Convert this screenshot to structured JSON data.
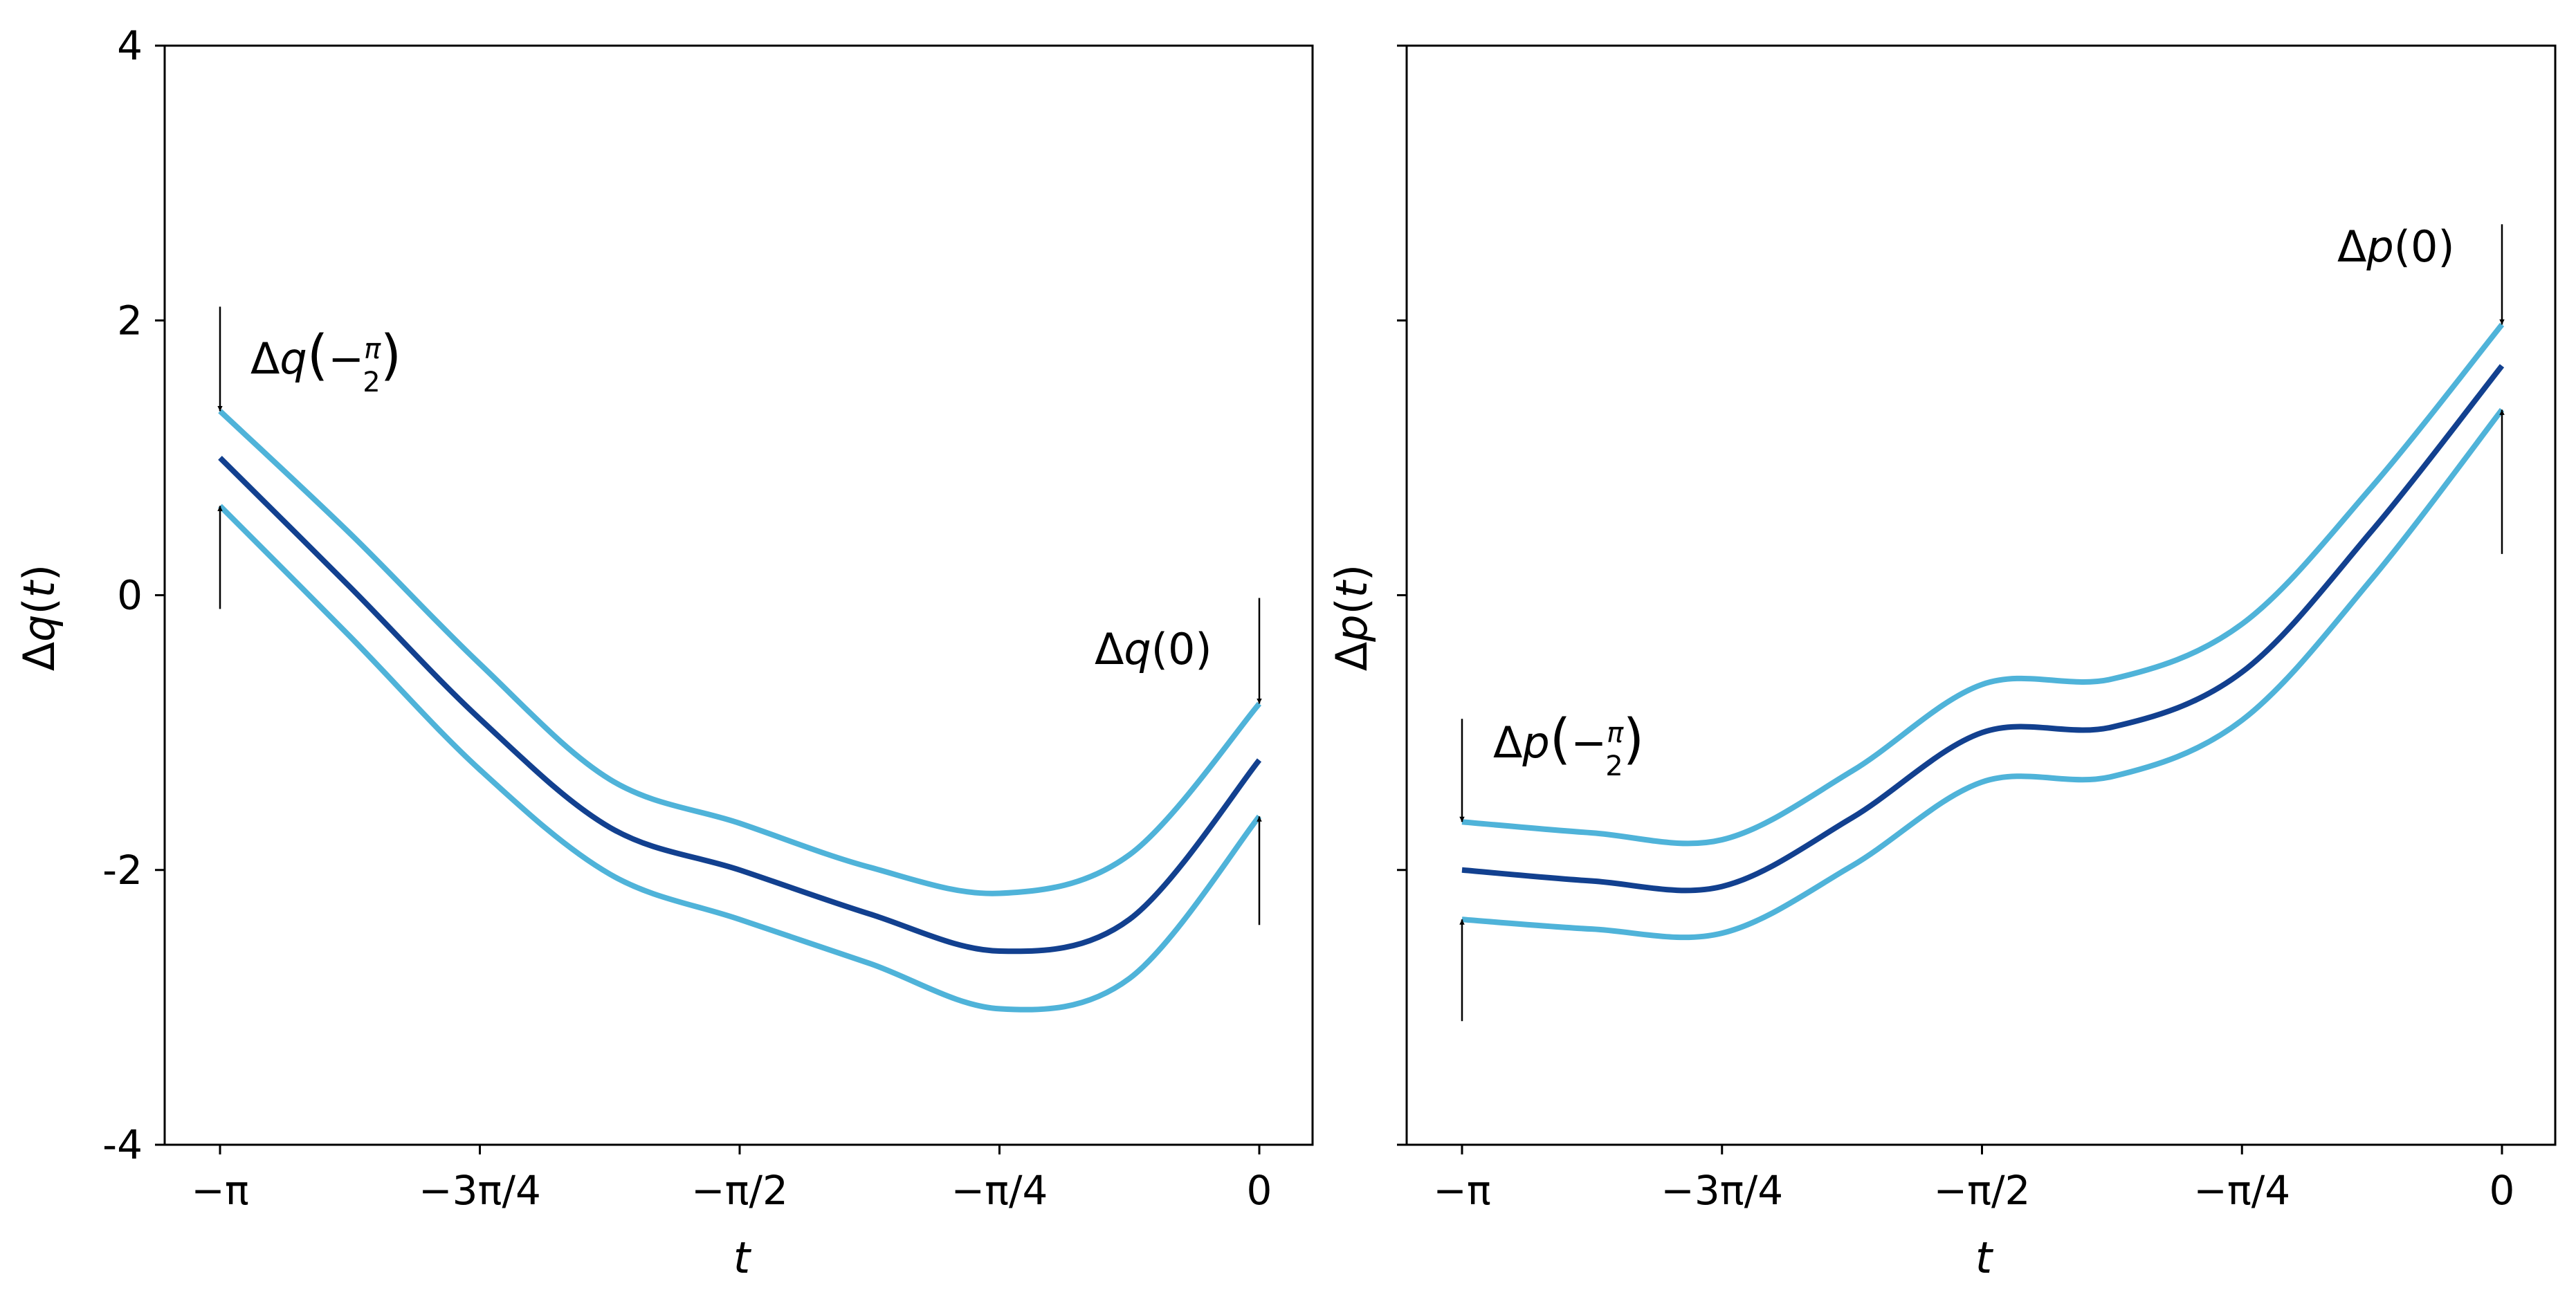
{
  "chart_data": [
    {
      "type": "line",
      "ylabel": "Δq(t)",
      "xlabel": "t",
      "xlim": [
        -3.14159,
        0
      ],
      "ylim": [
        -4,
        4
      ],
      "x_ticks": [
        "−π",
        "−3π/4",
        "−π/2",
        "−π/4",
        "0"
      ],
      "y_ticks": [
        "4",
        "2",
        "0",
        "-2",
        "-4"
      ],
      "grid": false,
      "series": [
        {
          "role": "upper",
          "color": "#4fb3d9",
          "points": [
            [
              -3.1416,
              1.34
            ],
            [
              -2.7489,
              0.45
            ],
            [
              -2.3562,
              -0.5
            ],
            [
              -1.9635,
              -1.34
            ],
            [
              -1.5708,
              -1.66
            ],
            [
              -1.1781,
              -1.98
            ],
            [
              -0.7854,
              -2.17
            ],
            [
              -0.3927,
              -1.89
            ],
            [
              0,
              -0.79
            ]
          ]
        },
        {
          "role": "center",
          "color": "#12408f",
          "points": [
            [
              -3.1416,
              1.0
            ],
            [
              -2.7489,
              0.06
            ],
            [
              -2.3562,
              -0.9
            ],
            [
              -1.9635,
              -1.69
            ],
            [
              -1.5708,
              -2.0
            ],
            [
              -1.1781,
              -2.32
            ],
            [
              -0.7854,
              -2.59
            ],
            [
              -0.3927,
              -2.36
            ],
            [
              0,
              -1.2
            ]
          ]
        },
        {
          "role": "lower",
          "color": "#4fb3d9",
          "points": [
            [
              -3.1416,
              0.65
            ],
            [
              -2.7489,
              -0.3
            ],
            [
              -2.3562,
              -1.27
            ],
            [
              -1.9635,
              -2.03
            ],
            [
              -1.5708,
              -2.36
            ],
            [
              -1.1781,
              -2.68
            ],
            [
              -0.7854,
              -3.01
            ],
            [
              -0.3927,
              -2.79
            ],
            [
              0,
              -1.61
            ]
          ]
        }
      ],
      "annotations": [
        {
          "text": "Δq(−π/2)",
          "x": -3.1416,
          "y_top": 2.1,
          "y_bottom": -0.1
        },
        {
          "text": "Δq(0)",
          "x": 0,
          "y_top": -0.02,
          "y_bottom": -2.4
        }
      ]
    },
    {
      "type": "line",
      "ylabel": "Δp(t)",
      "xlabel": "t",
      "xlim": [
        -3.14159,
        0
      ],
      "ylim": [
        -4,
        4
      ],
      "x_ticks": [
        "−π",
        "−3π/4",
        "−π/2",
        "−π/4",
        "0"
      ],
      "y_ticks_labeled": false,
      "grid": false,
      "series": [
        {
          "role": "upper",
          "color": "#4fb3d9",
          "points": [
            [
              -3.1416,
              -1.65
            ],
            [
              -2.7489,
              -1.73
            ],
            [
              -2.3562,
              -1.78
            ],
            [
              -1.9635,
              -1.28
            ],
            [
              -1.5708,
              -0.65
            ],
            [
              -1.1781,
              -0.61
            ],
            [
              -0.7854,
              -0.21
            ],
            [
              -0.3927,
              0.79
            ],
            [
              0,
              1.97
            ]
          ]
        },
        {
          "role": "center",
          "color": "#12408f",
          "points": [
            [
              -3.1416,
              -2.0
            ],
            [
              -2.7489,
              -2.08
            ],
            [
              -2.3562,
              -2.12
            ],
            [
              -1.9635,
              -1.62
            ],
            [
              -1.5708,
              -1.0
            ],
            [
              -1.1781,
              -0.96
            ],
            [
              -0.7854,
              -0.56
            ],
            [
              -0.3927,
              0.47
            ],
            [
              0,
              1.67
            ]
          ]
        },
        {
          "role": "lower",
          "color": "#4fb3d9",
          "points": [
            [
              -3.1416,
              -2.36
            ],
            [
              -2.7489,
              -2.43
            ],
            [
              -2.3562,
              -2.46
            ],
            [
              -1.9635,
              -1.97
            ],
            [
              -1.5708,
              -1.36
            ],
            [
              -1.1781,
              -1.32
            ],
            [
              -0.7854,
              -0.91
            ],
            [
              -0.3927,
              0.12
            ],
            [
              0,
              1.35
            ]
          ]
        }
      ],
      "annotations": [
        {
          "text": "Δp(−π/2)",
          "x": -3.1416,
          "y_top": -0.9,
          "y_bottom": -3.1
        },
        {
          "text": "Δp(0)",
          "x": 0,
          "y_top": 2.7,
          "y_bottom": 0.3
        }
      ]
    }
  ]
}
